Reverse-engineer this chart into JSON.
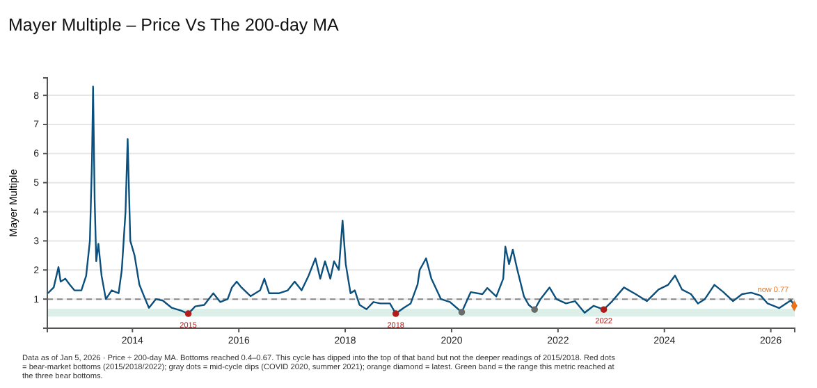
{
  "chart_data": {
    "type": "line",
    "title": "Mayer Multiple – Price Vs The 200-day MA",
    "ylabel": "Mayer Multiple",
    "xlim": [
      2012.4,
      2026.45
    ],
    "xticks": [
      2014,
      2016,
      2018,
      2020,
      2022,
      2024,
      2026
    ],
    "ylim": [
      0,
      8.6
    ],
    "yticks": [
      1,
      2,
      3,
      4,
      5,
      6,
      7,
      8
    ],
    "grid": "y",
    "series": [
      {
        "color": "#0b4f7c",
        "marker": "none",
        "x": [
          2012.41,
          2012.52,
          2012.61,
          2012.65,
          2012.74,
          2012.82,
          2012.91,
          2013.04,
          2013.13,
          2013.2,
          2013.24,
          2013.26,
          2013.29,
          2013.32,
          2013.36,
          2013.42,
          2013.5,
          2013.61,
          2013.74,
          2013.8,
          2013.87,
          2013.91,
          2013.96,
          2014.04,
          2014.13,
          2014.24,
          2014.31,
          2014.44,
          2014.57,
          2014.74,
          2014.92,
          2015.05,
          2015.18,
          2015.35,
          2015.52,
          2015.65,
          2015.79,
          2015.87,
          2015.96,
          2016.05,
          2016.22,
          2016.4,
          2016.48,
          2016.57,
          2016.75,
          2016.92,
          2017.05,
          2017.18,
          2017.31,
          2017.44,
          2017.53,
          2017.62,
          2017.72,
          2017.79,
          2017.88,
          2017.95,
          2018.01,
          2018.1,
          2018.18,
          2018.27,
          2018.4,
          2018.53,
          2018.66,
          2018.84,
          2018.95,
          2019.1,
          2019.23,
          2019.36,
          2019.4,
          2019.52,
          2019.62,
          2019.8,
          2019.97,
          2020.19,
          2020.36,
          2020.58,
          2020.67,
          2020.84,
          2020.97,
          2021.01,
          2021.08,
          2021.15,
          2021.23,
          2021.36,
          2021.45,
          2021.56,
          2021.67,
          2021.84,
          2021.97,
          2022.15,
          2022.32,
          2022.5,
          2022.67,
          2022.86,
          2023.02,
          2023.24,
          2023.46,
          2023.67,
          2023.89,
          2024.07,
          2024.2,
          2024.33,
          2024.5,
          2024.63,
          2024.76,
          2024.94,
          2025.11,
          2025.29,
          2025.46,
          2025.63,
          2025.81,
          2025.94,
          2026.16,
          2026.38,
          2026.44
        ],
        "values": [
          1.2,
          1.4,
          2.1,
          1.6,
          1.7,
          1.5,
          1.3,
          1.3,
          1.8,
          3.0,
          5.8,
          8.3,
          4.4,
          2.3,
          2.9,
          1.8,
          1.0,
          1.3,
          1.2,
          2.0,
          4.0,
          6.5,
          3.0,
          2.5,
          1.5,
          1.0,
          0.7,
          1.0,
          0.95,
          0.7,
          0.6,
          0.5,
          0.75,
          0.8,
          1.2,
          0.9,
          1.0,
          1.4,
          1.6,
          1.4,
          1.1,
          1.3,
          1.7,
          1.2,
          1.2,
          1.3,
          1.6,
          1.3,
          1.8,
          2.4,
          1.7,
          2.3,
          1.7,
          2.3,
          2.0,
          3.7,
          2.2,
          1.2,
          1.3,
          0.8,
          0.65,
          0.9,
          0.85,
          0.85,
          0.5,
          0.7,
          0.85,
          1.5,
          2.0,
          2.4,
          1.7,
          1.0,
          0.9,
          0.55,
          1.24,
          1.17,
          1.38,
          1.09,
          1.7,
          2.8,
          2.2,
          2.7,
          2.05,
          1.09,
          0.8,
          0.64,
          1.0,
          1.4,
          1.0,
          0.85,
          0.93,
          0.53,
          0.77,
          0.64,
          0.93,
          1.4,
          1.17,
          0.93,
          1.33,
          1.49,
          1.81,
          1.33,
          1.17,
          0.85,
          1.0,
          1.49,
          1.24,
          0.93,
          1.17,
          1.22,
          1.12,
          0.85,
          0.69,
          0.96,
          0.77
        ]
      },
      {
        "type": "scatter",
        "color": "#b01c1c",
        "marker": "circle",
        "x": [
          2015.05,
          2018.95,
          2022.86
        ],
        "values": [
          0.5,
          0.5,
          0.64
        ]
      },
      {
        "type": "scatter",
        "color": "#6b6b6b",
        "marker": "circle",
        "x": [
          2020.19,
          2021.56
        ],
        "values": [
          0.55,
          0.64
        ]
      },
      {
        "type": "scatter",
        "color": "#e8731a",
        "marker": "diamond",
        "x": [
          2026.44
        ],
        "values": [
          0.77
        ]
      }
    ],
    "ref_lines": [
      {
        "axis": "y",
        "value": 1,
        "color": "#888888",
        "line_style": "dashed"
      }
    ],
    "bands": [
      {
        "axis": "y",
        "from": 0.4,
        "to": 0.67,
        "color": "#dcefe8"
      }
    ],
    "annotations": [
      {
        "text": "2015",
        "x": 2015.05,
        "y": 0.5
      },
      {
        "text": "2018",
        "x": 2018.95,
        "y": 0.5
      },
      {
        "text": "2022",
        "x": 2022.86,
        "y": 0.64
      },
      {
        "text": "now 0.77",
        "x": 2026.44,
        "y": 0.77
      },
      "Data as of Jan 5, 2026 · Price ÷ 200-day MA. Bottoms reached 0.4–0.67. This cycle has dipped into the top of that band but not the deeper readings of 2015/2018. Red dots = bear-market bottoms (2015/2018/2022); gray dots = mid-cycle dips (COVID 2020, summer 2021); orange diamond = latest. Green band = the range this metric reached at the three bear bottoms."
    ]
  }
}
